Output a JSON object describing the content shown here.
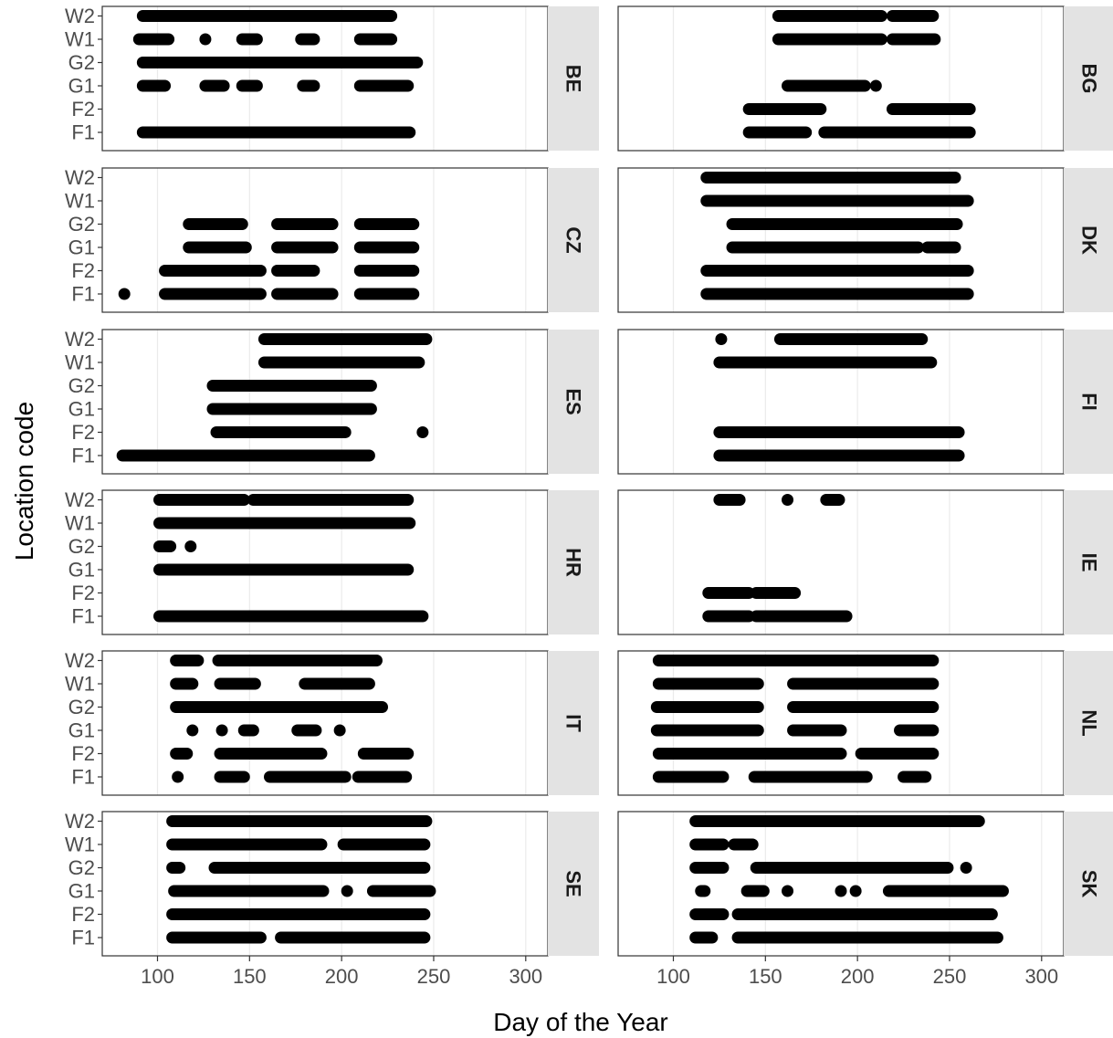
{
  "chart_data": {
    "type": "scatter",
    "xlabel": "Day of the Year",
    "ylabel": "Location code",
    "xlim": [
      70,
      312
    ],
    "x_ticks": [
      100,
      150,
      200,
      250,
      300
    ],
    "x_tick_labels": [
      "100",
      "150",
      "200",
      "250",
      "300"
    ],
    "y_categories": [
      "F1",
      "F2",
      "G1",
      "G2",
      "W1",
      "W2"
    ],
    "grid": true,
    "legend": "none",
    "point_color": "#000000",
    "panels": [
      {
        "label": "BE",
        "rows": {
          "W2": [
            [
              92,
              227
            ]
          ],
          "W1": [
            [
              90,
              106
            ],
            [
              126,
              126
            ],
            [
              146,
              154
            ],
            [
              178,
              185
            ],
            [
              210,
              227
            ]
          ],
          "G2": [
            [
              92,
              241
            ]
          ],
          "G1": [
            [
              92,
              104
            ],
            [
              126,
              136
            ],
            [
              146,
              154
            ],
            [
              179,
              185
            ],
            [
              210,
              236
            ]
          ],
          "F2": [],
          "F1": [
            [
              92,
              237
            ]
          ]
        }
      },
      {
        "label": "BG",
        "rows": {
          "W2": [
            [
              157,
              213
            ],
            [
              219,
              241
            ]
          ],
          "W1": [
            [
              157,
              213
            ],
            [
              219,
              242
            ]
          ],
          "G2": [],
          "G1": [
            [
              162,
              204
            ],
            [
              210,
              210
            ]
          ],
          "F2": [
            [
              141,
              180
            ],
            [
              219,
              261
            ]
          ],
          "F1": [
            [
              141,
              172
            ],
            [
              182,
              261
            ]
          ]
        }
      },
      {
        "label": "CZ",
        "rows": {
          "W2": [],
          "W1": [],
          "G2": [
            [
              117,
              146
            ],
            [
              165,
              195
            ],
            [
              210,
              239
            ]
          ],
          "G1": [
            [
              117,
              148
            ],
            [
              165,
              195
            ],
            [
              210,
              239
            ]
          ],
          "F2": [
            [
              104,
              156
            ],
            [
              165,
              185
            ],
            [
              210,
              239
            ]
          ],
          "F1": [
            [
              82,
              82
            ],
            [
              104,
              156
            ],
            [
              165,
              195
            ],
            [
              210,
              239
            ]
          ]
        }
      },
      {
        "label": "DK",
        "rows": {
          "W2": [
            [
              118,
              253
            ]
          ],
          "W1": [
            [
              118,
              260
            ]
          ],
          "G2": [
            [
              132,
              254
            ]
          ],
          "G1": [
            [
              132,
              233
            ],
            [
              238,
              253
            ]
          ],
          "F2": [
            [
              118,
              260
            ]
          ],
          "F1": [
            [
              118,
              260
            ]
          ]
        }
      },
      {
        "label": "ES",
        "rows": {
          "W2": [
            [
              158,
              246
            ]
          ],
          "W1": [
            [
              158,
              242
            ]
          ],
          "G2": [
            [
              130,
              216
            ]
          ],
          "G1": [
            [
              130,
              216
            ]
          ],
          "F2": [
            [
              132,
              202
            ],
            [
              244,
              244
            ]
          ],
          "F1": [
            [
              81,
              215
            ]
          ]
        }
      },
      {
        "label": "FI",
        "rows": {
          "W2": [
            [
              126,
              126
            ],
            [
              158,
              235
            ]
          ],
          "W1": [
            [
              125,
              240
            ]
          ],
          "G2": [],
          "G1": [],
          "F2": [
            [
              125,
              255
            ]
          ],
          "F1": [
            [
              125,
              255
            ]
          ]
        }
      },
      {
        "label": "HR",
        "rows": {
          "W2": [
            [
              101,
              147
            ],
            [
              152,
              236
            ]
          ],
          "W1": [
            [
              101,
              237
            ]
          ],
          "G2": [
            [
              101,
              107
            ],
            [
              118,
              118
            ]
          ],
          "G1": [
            [
              101,
              236
            ]
          ],
          "F2": [],
          "F1": [
            [
              101,
              244
            ]
          ]
        }
      },
      {
        "label": "IE",
        "rows": {
          "W2": [
            [
              125,
              136
            ],
            [
              162,
              162
            ],
            [
              183,
              190
            ]
          ],
          "W1": [],
          "G2": [],
          "G1": [],
          "F2": [
            [
              119,
              141
            ],
            [
              145,
              166
            ]
          ],
          "F1": [
            [
              119,
              141
            ],
            [
              145,
              194
            ]
          ]
        }
      },
      {
        "label": "IT",
        "rows": {
          "W2": [
            [
              110,
              122
            ],
            [
              133,
              219
            ]
          ],
          "W1": [
            [
              110,
              119
            ],
            [
              134,
              153
            ],
            [
              180,
              215
            ]
          ],
          "G2": [
            [
              110,
              222
            ]
          ],
          "G1": [
            [
              119,
              119
            ],
            [
              135,
              135
            ],
            [
              147,
              152
            ],
            [
              176,
              186
            ],
            [
              199,
              199
            ]
          ],
          "F2": [
            [
              110,
              116
            ],
            [
              134,
              189
            ],
            [
              212,
              236
            ]
          ],
          "F1": [
            [
              111,
              111
            ],
            [
              134,
              147
            ],
            [
              161,
              202
            ],
            [
              209,
              235
            ]
          ]
        }
      },
      {
        "label": "NL",
        "rows": {
          "W2": [
            [
              92,
              241
            ]
          ],
          "W1": [
            [
              92,
              146
            ],
            [
              165,
              241
            ]
          ],
          "G2": [
            [
              91,
              146
            ],
            [
              165,
              241
            ]
          ],
          "G1": [
            [
              91,
              146
            ],
            [
              165,
              191
            ],
            [
              223,
              241
            ]
          ],
          "F2": [
            [
              92,
              191
            ],
            [
              202,
              241
            ]
          ],
          "F1": [
            [
              92,
              127
            ],
            [
              144,
              205
            ],
            [
              225,
              237
            ]
          ]
        }
      },
      {
        "label": "SE",
        "rows": {
          "W2": [
            [
              108,
              246
            ]
          ],
          "W1": [
            [
              108,
              189
            ],
            [
              201,
              245
            ]
          ],
          "G2": [
            [
              108,
              112
            ],
            [
              131,
              245
            ]
          ],
          "G1": [
            [
              109,
              190
            ],
            [
              203,
              203
            ],
            [
              217,
              248
            ]
          ],
          "F2": [
            [
              108,
              245
            ]
          ],
          "F1": [
            [
              108,
              156
            ],
            [
              167,
              245
            ]
          ]
        }
      },
      {
        "label": "SK",
        "rows": {
          "W2": [
            [
              112,
              266
            ]
          ],
          "W1": [
            [
              112,
              127
            ],
            [
              133,
              143
            ]
          ],
          "G2": [
            [
              112,
              127
            ],
            [
              145,
              249
            ],
            [
              259,
              259
            ]
          ],
          "G1": [
            [
              115,
              117
            ],
            [
              140,
              149
            ],
            [
              162,
              162
            ],
            [
              191,
              191
            ],
            [
              199,
              199
            ],
            [
              217,
              279
            ]
          ],
          "F2": [
            [
              112,
              127
            ],
            [
              135,
              273
            ]
          ],
          "F1": [
            [
              112,
              121
            ],
            [
              135,
              276
            ]
          ]
        }
      }
    ]
  }
}
